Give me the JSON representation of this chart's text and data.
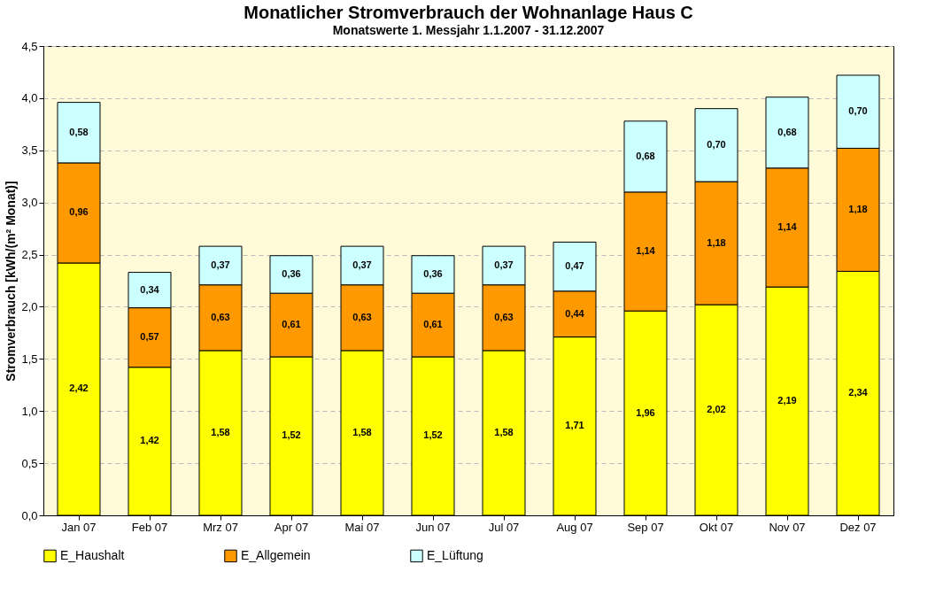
{
  "chart_data": {
    "type": "bar",
    "title": "Monatlicher Stromverbrauch der Wohnanlage Haus C",
    "subtitle": "Monatswerte 1. Messjahr 1.1.2007 - 31.12.2007",
    "ylabel": "Stromverbrauch [kWh/(m² Monat)]",
    "categories": [
      "Jan 07",
      "Feb 07",
      "Mrz 07",
      "Apr 07",
      "Mai 07",
      "Jun 07",
      "Jul 07",
      "Aug 07",
      "Sep 07",
      "Okt 07",
      "Nov 07",
      "Dez 07"
    ],
    "stacked": true,
    "series": [
      {
        "name": "E_Haushalt",
        "color": "#ffff00",
        "values": [
          2.42,
          1.42,
          1.58,
          1.52,
          1.58,
          1.52,
          1.58,
          1.71,
          1.96,
          2.02,
          2.19,
          2.34
        ],
        "value_labels": [
          "2,42",
          "1,42",
          "1,58",
          "1,52",
          "1,58",
          "1,52",
          "1,58",
          "1,71",
          "1,96",
          "2,02",
          "2,19",
          "2,34"
        ]
      },
      {
        "name": "E_Allgemein",
        "color": "#ff9900",
        "values": [
          0.96,
          0.57,
          0.63,
          0.61,
          0.63,
          0.61,
          0.63,
          0.44,
          1.14,
          1.18,
          1.14,
          1.18
        ],
        "value_labels": [
          "0,96",
          "0,57",
          "0,63",
          "0,61",
          "0,63",
          "0,61",
          "0,63",
          "0,44",
          "1,14",
          "1,18",
          "1,14",
          "1,18"
        ]
      },
      {
        "name": "E_Lüftung",
        "color": "#ccffff",
        "values": [
          0.58,
          0.34,
          0.37,
          0.36,
          0.37,
          0.36,
          0.37,
          0.47,
          0.68,
          0.7,
          0.68,
          0.7
        ],
        "value_labels": [
          "0,58",
          "0,34",
          "0,37",
          "0,36",
          "0,37",
          "0,36",
          "0,37",
          "0,47",
          "0,68",
          "0,70",
          "0,68",
          "0,70"
        ]
      }
    ],
    "ylim": [
      0,
      4.5
    ],
    "yticks": [
      {
        "value": 0,
        "label": "0,0"
      },
      {
        "value": 0.5,
        "label": "0,5"
      },
      {
        "value": 1,
        "label": "1,0"
      },
      {
        "value": 1.5,
        "label": "1,5"
      },
      {
        "value": 2,
        "label": "2,0"
      },
      {
        "value": 2.5,
        "label": "2,5"
      },
      {
        "value": 3,
        "label": "3,0"
      },
      {
        "value": 3.5,
        "label": "3,5"
      },
      {
        "value": 4,
        "label": "4,0"
      },
      {
        "value": 4.5,
        "label": "4,5"
      }
    ],
    "grid": "y",
    "legend": "bottom"
  }
}
